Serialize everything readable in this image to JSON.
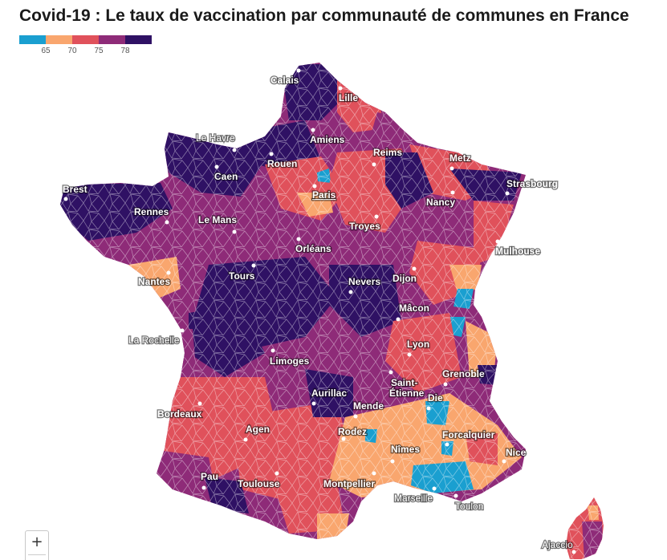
{
  "title": "Covid-19 : Le taux de vaccination par communauté de communes en France",
  "legend": {
    "colors": [
      "#1a9fd0",
      "#f9a66e",
      "#e0515b",
      "#8e2b78",
      "#2f1164"
    ],
    "ticks": [
      "65",
      "70",
      "75",
      "78"
    ]
  },
  "zoom": {
    "in_label": "+"
  },
  "cities": [
    {
      "name": "Calais"
    },
    {
      "name": "Lille"
    },
    {
      "name": "Le Havre"
    },
    {
      "name": "Amiens"
    },
    {
      "name": "Rouen"
    },
    {
      "name": "Caen"
    },
    {
      "name": "Reims"
    },
    {
      "name": "Metz"
    },
    {
      "name": "Strasbourg"
    },
    {
      "name": "Brest"
    },
    {
      "name": "Paris"
    },
    {
      "name": "Nancy"
    },
    {
      "name": "Rennes"
    },
    {
      "name": "Le Mans"
    },
    {
      "name": "Troyes"
    },
    {
      "name": "Orléans"
    },
    {
      "name": "Mulhouse"
    },
    {
      "name": "Tours"
    },
    {
      "name": "Nantes"
    },
    {
      "name": "Dijon"
    },
    {
      "name": "Nevers"
    },
    {
      "name": "Mâcon"
    },
    {
      "name": "La Rochelle"
    },
    {
      "name": "Lyon"
    },
    {
      "name": "Limoges"
    },
    {
      "name": "Grenoble"
    },
    {
      "name": "Saint-"
    },
    {
      "name": "Étienne"
    },
    {
      "name": "Die"
    },
    {
      "name": "Aurillac"
    },
    {
      "name": "Bordeaux"
    },
    {
      "name": "Mende"
    },
    {
      "name": "Agen"
    },
    {
      "name": "Rodez"
    },
    {
      "name": "Forcalquier"
    },
    {
      "name": "Nîmes"
    },
    {
      "name": "Nice"
    },
    {
      "name": "Pau"
    },
    {
      "name": "Toulouse"
    },
    {
      "name": "Montpellier"
    },
    {
      "name": "Marseille"
    },
    {
      "name": "Toulon"
    },
    {
      "name": "Ajaccio"
    }
  ]
}
